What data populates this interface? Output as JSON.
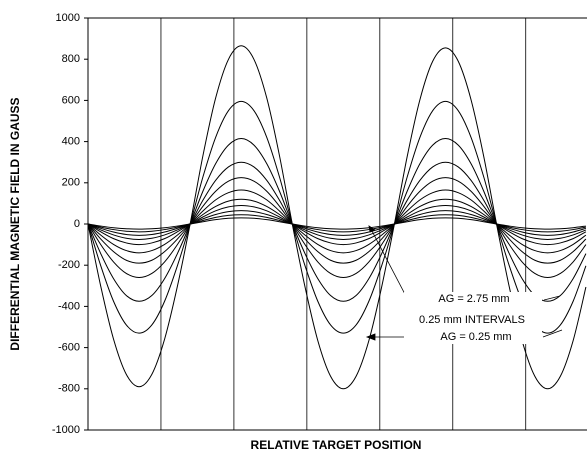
{
  "chart_data": {
    "type": "line",
    "y_label": "DIFFERENTIAL MAGNETIC FIELD IN GAUSS",
    "x_label": "RELATIVE TARGET POSITION",
    "annotations": [
      "AG = 2.75 mm",
      "0.25 mm INTERVALS",
      "AG = 0.25 mm"
    ],
    "ylim": [
      -1000,
      1000
    ],
    "yticks": [
      -1000,
      -800,
      -600,
      -400,
      -200,
      0,
      200,
      400,
      600,
      800,
      1000
    ],
    "xlim": [
      0,
      6.84
    ],
    "xticks": [
      1,
      2,
      3,
      4,
      5,
      6
    ],
    "grid": "x",
    "color": "#000000",
    "x": [
      0,
      0.175,
      0.35,
      0.525,
      0.7,
      0.875,
      1.05,
      1.225,
      1.4,
      1.575,
      1.75,
      1.925,
      2.1,
      2.275,
      2.45,
      2.625,
      2.8,
      2.975,
      3.15,
      3.325,
      3.5,
      3.675,
      3.85,
      4.025,
      4.2,
      4.375,
      4.55,
      4.725,
      4.9,
      5.075,
      5.25,
      5.425,
      5.6,
      5.775,
      5.95,
      6.125,
      6.3,
      6.475,
      6.65,
      6.825
    ],
    "series": [
      {
        "values": [
          0,
          -303,
          -559,
          -730,
          -790,
          -730,
          -559,
          -303,
          0,
          331,
          612,
          799,
          865,
          799,
          612,
          331,
          0,
          -306,
          -566,
          -739,
          -800,
          -739,
          -566,
          -306,
          0,
          327,
          604,
          790,
          855,
          790,
          604,
          327,
          0,
          -306,
          -566,
          -739,
          -800,
          -739,
          -566,
          -306
        ]
      },
      {
        "values": [
          0,
          -203,
          -375,
          -490,
          -530,
          -490,
          -375,
          -203,
          0,
          228,
          421,
          550,
          595,
          550,
          421,
          228,
          0,
          -203,
          -375,
          -490,
          -530,
          -490,
          -375,
          -203,
          0,
          228,
          421,
          550,
          595,
          550,
          421,
          228,
          0,
          -203,
          -375,
          -490,
          -530,
          -490,
          -375,
          -203
        ]
      },
      {
        "values": [
          0,
          -144,
          -265,
          -347,
          -375,
          -347,
          -265,
          -144,
          0,
          159,
          293,
          383,
          415,
          383,
          293,
          159,
          0,
          -144,
          -265,
          -347,
          -375,
          -347,
          -265,
          -144,
          0,
          159,
          293,
          383,
          415,
          383,
          293,
          159,
          0,
          -144,
          -265,
          -347,
          -375,
          -347,
          -265,
          -144
        ]
      },
      {
        "values": [
          0,
          -100,
          -184,
          -240,
          -260,
          -240,
          -184,
          -100,
          0,
          115,
          212,
          277,
          300,
          277,
          212,
          115,
          0,
          -100,
          -184,
          -240,
          -260,
          -240,
          -184,
          -100,
          0,
          115,
          212,
          277,
          300,
          277,
          212,
          115,
          0,
          -100,
          -184,
          -240,
          -260,
          -240,
          -184,
          -100
        ]
      },
      {
        "values": [
          0,
          -73,
          -134,
          -176,
          -190,
          -176,
          -134,
          -73,
          0,
          86,
          159,
          208,
          225,
          208,
          159,
          86,
          0,
          -73,
          -134,
          -176,
          -190,
          -176,
          -134,
          -73,
          0,
          86,
          159,
          208,
          225,
          208,
          159,
          86,
          0,
          -73,
          -134,
          -176,
          -190,
          -176,
          -134,
          -73
        ]
      },
      {
        "values": [
          0,
          -54,
          -99,
          -129,
          -140,
          -129,
          -99,
          -54,
          0,
          63,
          117,
          152,
          165,
          152,
          117,
          63,
          0,
          -54,
          -99,
          -129,
          -140,
          -129,
          -99,
          -54,
          0,
          63,
          117,
          152,
          165,
          152,
          117,
          63,
          0,
          -54,
          -99,
          -129,
          -140,
          -129,
          -99,
          -54
        ]
      },
      {
        "values": [
          0,
          -38,
          -71,
          -92,
          -100,
          -92,
          -71,
          -38,
          0,
          46,
          85,
          111,
          120,
          111,
          85,
          46,
          0,
          -38,
          -71,
          -92,
          -100,
          -92,
          -71,
          -38,
          0,
          46,
          85,
          111,
          120,
          111,
          85,
          46,
          0,
          -38,
          -71,
          -92,
          -100,
          -92,
          -71,
          -38
        ]
      },
      {
        "values": [
          0,
          -29,
          -53,
          -69,
          -75,
          -69,
          -53,
          -29,
          0,
          34,
          64,
          83,
          90,
          83,
          64,
          34,
          0,
          -29,
          -53,
          -69,
          -75,
          -69,
          -53,
          -29,
          0,
          34,
          64,
          83,
          90,
          83,
          64,
          34,
          0,
          -29,
          -53,
          -69,
          -75,
          -69,
          -53,
          -29
        ]
      },
      {
        "values": [
          0,
          -21,
          -39,
          -51,
          -55,
          -51,
          -39,
          -21,
          0,
          25,
          46,
          60,
          65,
          60,
          46,
          25,
          0,
          -21,
          -39,
          -51,
          -55,
          -51,
          -39,
          -21,
          0,
          25,
          46,
          60,
          65,
          60,
          46,
          25,
          0,
          -21,
          -39,
          -51,
          -55,
          -51,
          -39,
          -21
        ]
      },
      {
        "values": [
          0,
          -15,
          -27,
          -35,
          -38,
          -35,
          -27,
          -15,
          0,
          17,
          32,
          42,
          45,
          42,
          32,
          17,
          0,
          -15,
          -27,
          -35,
          -38,
          -35,
          -27,
          -15,
          0,
          17,
          32,
          42,
          45,
          42,
          32,
          17,
          0,
          -15,
          -27,
          -35,
          -38,
          -35,
          -27,
          -15
        ]
      },
      {
        "values": [
          0,
          -10,
          -18,
          -23,
          -25,
          -23,
          -18,
          -10,
          0,
          11,
          21,
          28,
          30,
          28,
          21,
          11,
          0,
          -10,
          -18,
          -23,
          -25,
          -23,
          -18,
          -10,
          0,
          11,
          21,
          28,
          30,
          28,
          21,
          11,
          0,
          -10,
          -18,
          -23,
          -25,
          -23,
          -18,
          -10
        ]
      }
    ]
  }
}
